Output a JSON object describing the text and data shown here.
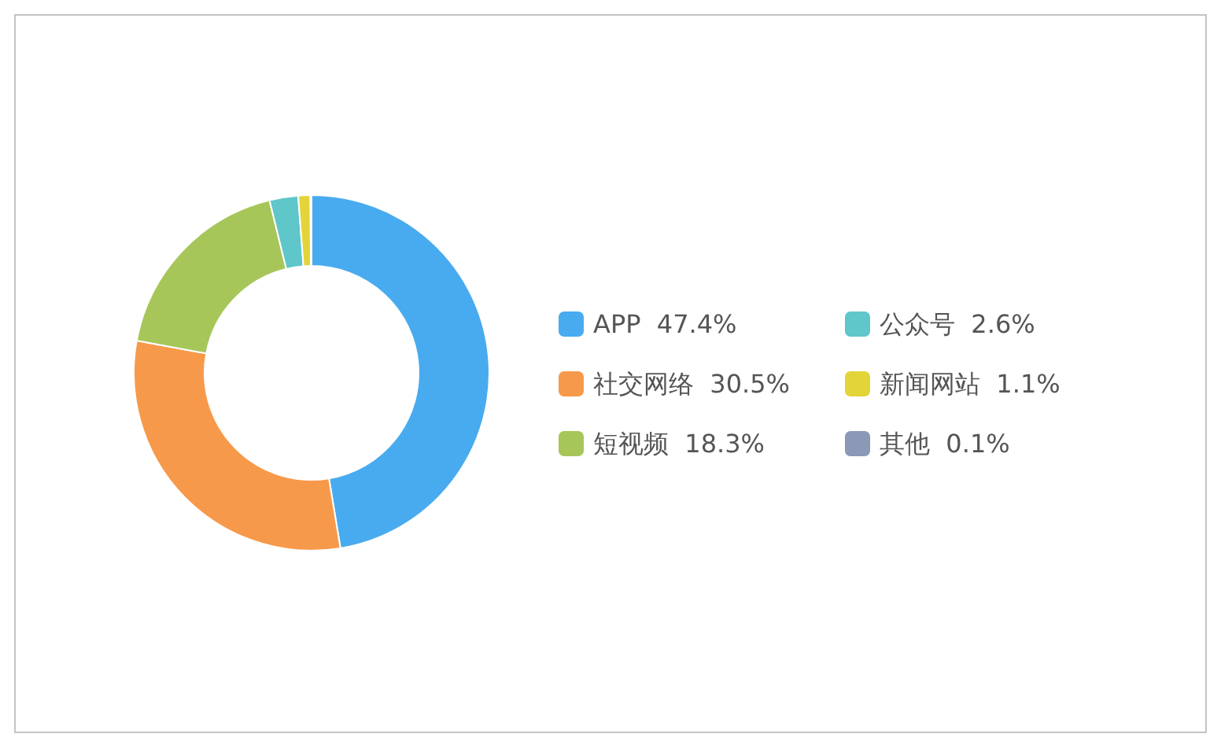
{
  "chart_data": {
    "type": "donut",
    "categories": [
      "APP",
      "社交网络",
      "短视频",
      "公众号",
      "新闻网站",
      "其他"
    ],
    "values": [
      47.4,
      30.5,
      18.3,
      2.6,
      1.1,
      0.1
    ],
    "value_labels": [
      "47.4%",
      "30.5%",
      "18.3%",
      "2.6%",
      "1.1%",
      "0.1%"
    ],
    "colors": [
      "#48abef",
      "#f7994a",
      "#a7c65a",
      "#5fc6c9",
      "#e3d43a",
      "#8b98b6"
    ],
    "legend": "right"
  }
}
